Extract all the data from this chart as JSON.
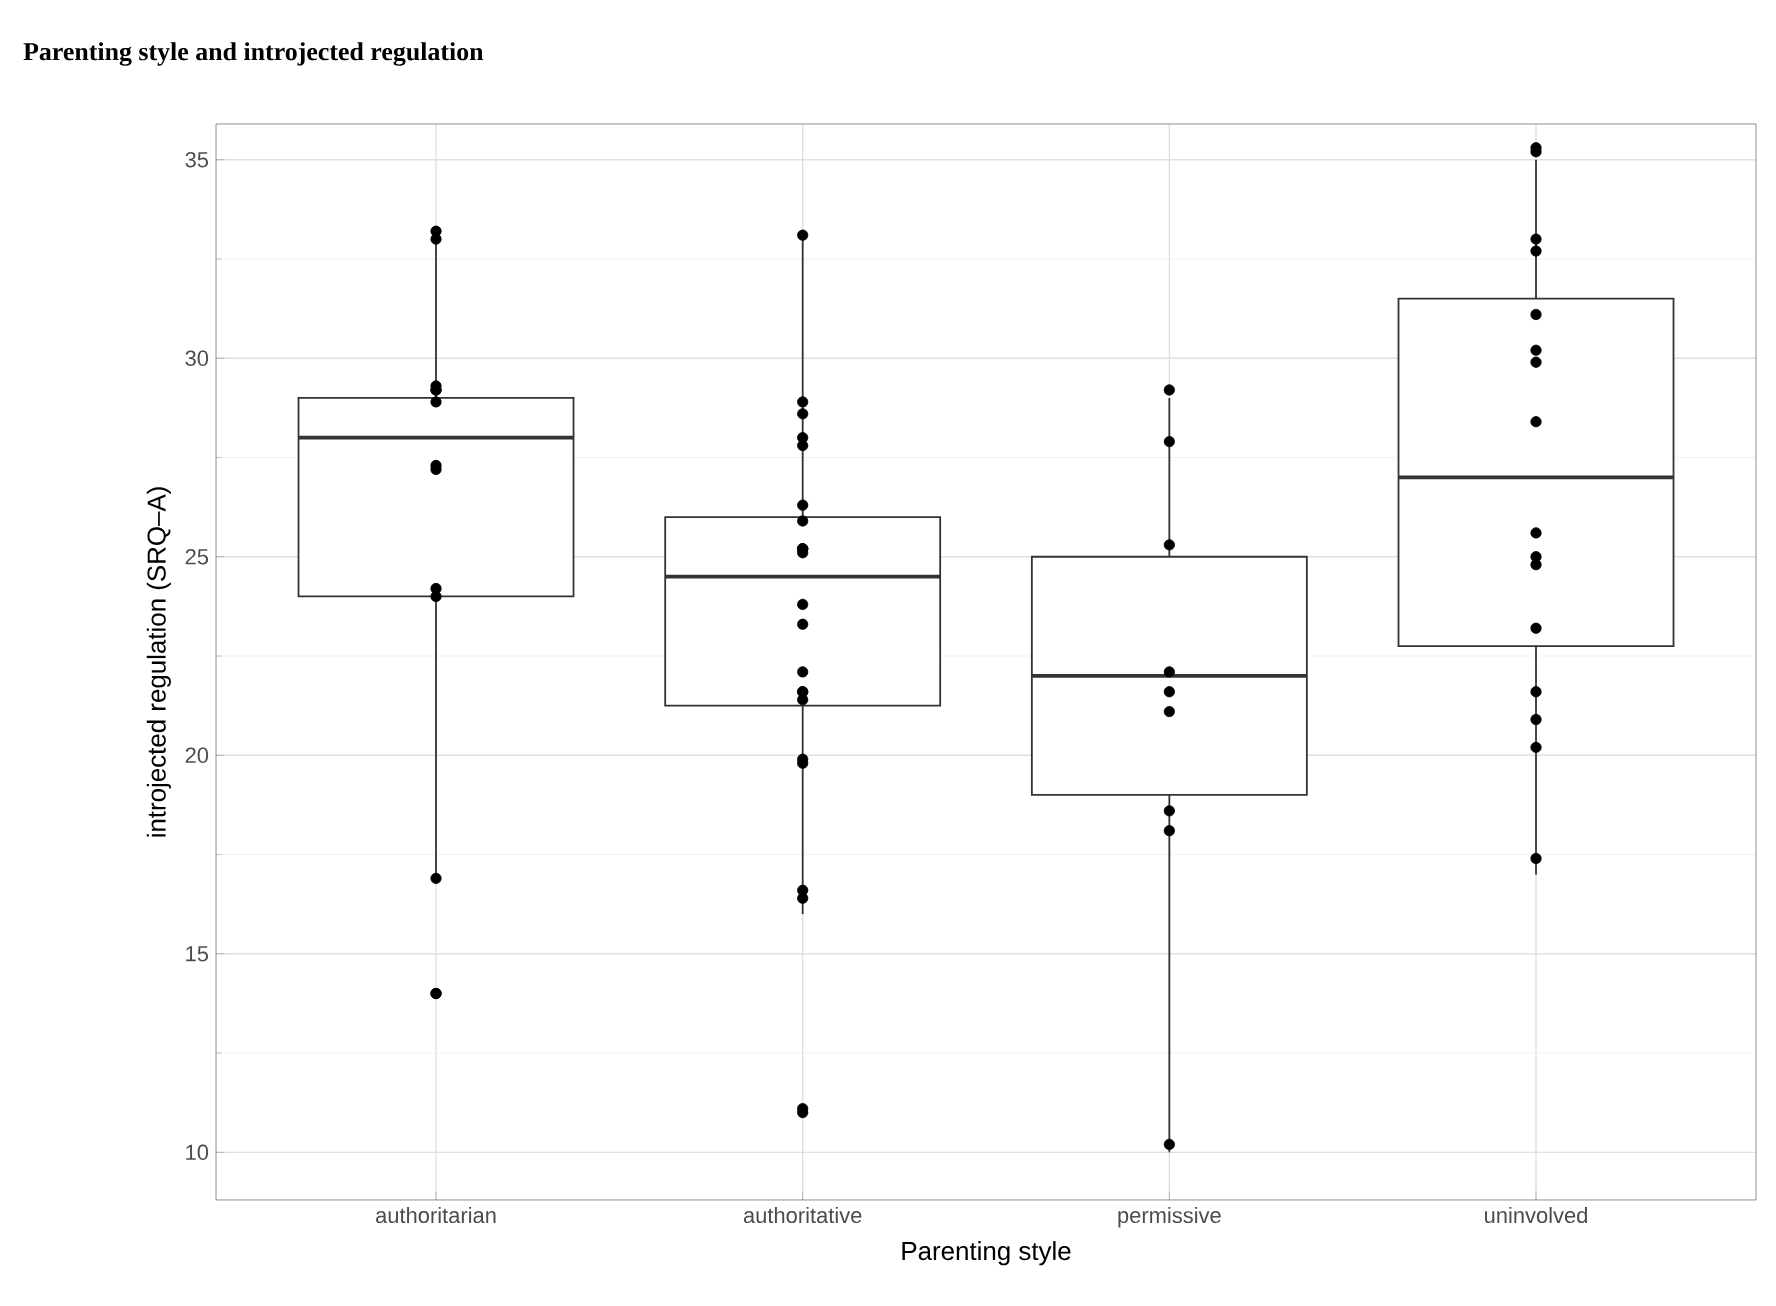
{
  "chart_data": {
    "type": "box",
    "title": "Parenting style and introjected regulation",
    "xlabel": "Parenting style",
    "ylabel": "introjected regulation (SRQ–A)",
    "categories": [
      "authoritarian",
      "authoritative",
      "permissive",
      "uninvolved"
    ],
    "boxes": [
      {
        "low": 16.9,
        "q1": 24,
        "median": 28,
        "q3": 29,
        "high": 33.2
      },
      {
        "low": 16,
        "q1": 21.25,
        "median": 24.5,
        "q3": 26,
        "high": 33
      },
      {
        "low": 10,
        "q1": 19,
        "median": 22,
        "q3": 25,
        "high": 29
      },
      {
        "low": 17,
        "q1": 22.75,
        "median": 27,
        "q3": 31.5,
        "high": 35
      }
    ],
    "series": [
      {
        "type": "scatter",
        "color": "#000000",
        "x": [
          "authoritarian",
          "authoritarian",
          "authoritarian",
          "authoritarian",
          "authoritarian",
          "authoritarian",
          "authoritarian",
          "authoritarian",
          "authoritarian",
          "authoritarian",
          "authoritarian",
          "authoritarian",
          "authoritarian",
          "authoritative",
          "authoritative",
          "authoritative",
          "authoritative",
          "authoritative",
          "authoritative",
          "authoritative",
          "authoritative",
          "authoritative",
          "authoritative",
          "authoritative",
          "authoritative",
          "authoritative",
          "authoritative",
          "authoritative",
          "authoritative",
          "authoritative",
          "authoritative",
          "authoritative",
          "authoritative",
          "authoritative",
          "authoritative",
          "authoritative",
          "permissive",
          "permissive",
          "permissive",
          "permissive",
          "permissive",
          "permissive",
          "permissive",
          "permissive",
          "permissive",
          "uninvolved",
          "uninvolved",
          "uninvolved",
          "uninvolved",
          "uninvolved",
          "uninvolved",
          "uninvolved",
          "uninvolved",
          "uninvolved",
          "uninvolved",
          "uninvolved",
          "uninvolved",
          "uninvolved",
          "uninvolved",
          "uninvolved",
          "uninvolved"
        ],
        "values": [
          33.0,
          33.2,
          29.2,
          28.9,
          29.3,
          29.2,
          27.3,
          27.2,
          24.0,
          24.2,
          16.9,
          14.0,
          14.0,
          33.1,
          28.9,
          28.6,
          28.0,
          27.8,
          26.3,
          25.9,
          25.2,
          25.2,
          25.2,
          25.1,
          23.8,
          23.3,
          22.1,
          21.6,
          21.6,
          21.4,
          19.9,
          19.8,
          16.6,
          16.4,
          11.1,
          11.0,
          29.2,
          27.9,
          25.3,
          22.1,
          21.6,
          21.1,
          18.6,
          18.1,
          10.2,
          35.2,
          35.3,
          33.0,
          32.7,
          31.1,
          30.2,
          29.9,
          28.4,
          25.6,
          25.0,
          24.8,
          23.2,
          21.6,
          20.9,
          20.2,
          17.4
        ]
      }
    ],
    "ylim": [
      8.8,
      35.9
    ],
    "yticks": [
      10,
      15,
      20,
      25,
      30,
      35
    ],
    "grid": true
  }
}
